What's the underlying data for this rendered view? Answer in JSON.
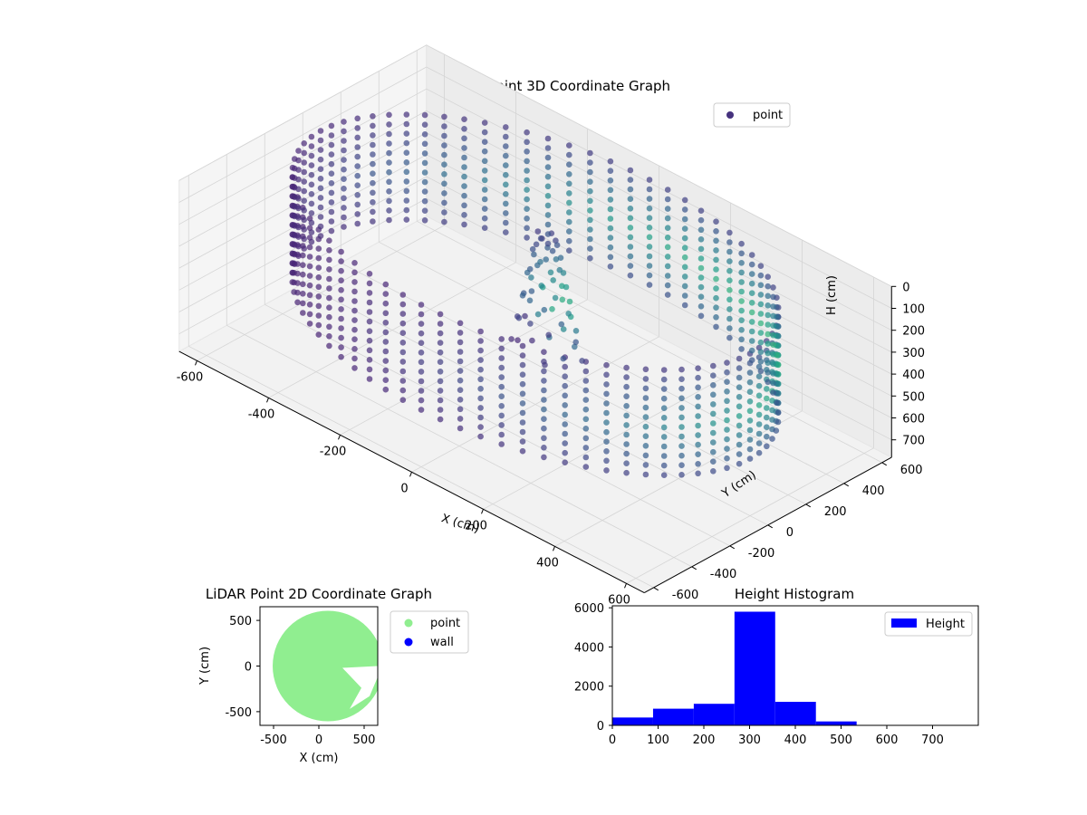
{
  "chart_data": [
    {
      "type": "scatter",
      "projection": "3d",
      "title": "LiDAR Point 3D Coordinate Graph",
      "xlabel": "X (cm)",
      "ylabel": "Y (cm)",
      "zlabel": "H (cm)",
      "xlim": [
        -650,
        650
      ],
      "ylim": [
        -650,
        650
      ],
      "zlim": [
        0,
        780
      ],
      "z_inverted": true,
      "x_ticks": [
        -600,
        -400,
        -200,
        0,
        200,
        400,
        600
      ],
      "y_ticks": [
        -600,
        -400,
        -200,
        0,
        200,
        400,
        600
      ],
      "z_ticks": [
        0,
        100,
        200,
        300,
        400,
        500,
        600,
        700
      ],
      "grid": true,
      "legend": {
        "position": "upper-right",
        "entries": [
          {
            "label": "point",
            "color": "#46327e"
          }
        ]
      },
      "colormap": "viridis",
      "series": [
        {
          "name": "point",
          "description_shape": "cylindrical wall of radius about 600 cm spanning heights about 40-520 cm, with a central column of points near the origin",
          "wall_radius": 600,
          "wall_h_range": [
            40,
            520
          ],
          "wall_angle_steps": 72,
          "wall_h_steps": 12,
          "column_center": [
            0,
            60
          ],
          "column_h_range": [
            40,
            560
          ]
        }
      ]
    },
    {
      "type": "scatter",
      "title": "LiDAR Point 2D Coordinate Graph",
      "xlabel": "X (cm)",
      "ylabel": "Y (cm)",
      "xlim": [
        -650,
        650
      ],
      "ylim": [
        -650,
        650
      ],
      "x_ticks": [
        -500,
        0,
        500
      ],
      "y_ticks": [
        500,
        0,
        -500
      ],
      "legend": {
        "position": "outside-right",
        "entries": [
          {
            "label": "point",
            "color": "#90ee90"
          },
          {
            "label": "wall",
            "color": "#0000ff"
          }
        ]
      },
      "series": [
        {
          "name": "point",
          "color": "#90ee90",
          "region": "filled disc centered near (100, 0) with radius about 610, small gap on the right side"
        },
        {
          "name": "wall",
          "color": "#0000ff",
          "points": []
        }
      ]
    },
    {
      "type": "bar",
      "title": "Height Histogram",
      "xlabel": "",
      "ylabel": "",
      "xlim": [
        0,
        800
      ],
      "ylim": [
        0,
        6100
      ],
      "x_ticks": [
        0,
        100,
        200,
        300,
        400,
        500,
        600,
        700
      ],
      "y_ticks": [
        0,
        2000,
        4000,
        6000
      ],
      "legend": {
        "position": "upper-right",
        "entries": [
          {
            "label": "Height",
            "color": "#0000ff"
          }
        ]
      },
      "series": [
        {
          "name": "Height",
          "color": "#0000ff",
          "bins": [
            0,
            89,
            178,
            267,
            356,
            445,
            534,
            623,
            712,
            801
          ],
          "values": [
            400,
            850,
            1100,
            5800,
            1200,
            200,
            10,
            5,
            0
          ]
        }
      ]
    }
  ]
}
